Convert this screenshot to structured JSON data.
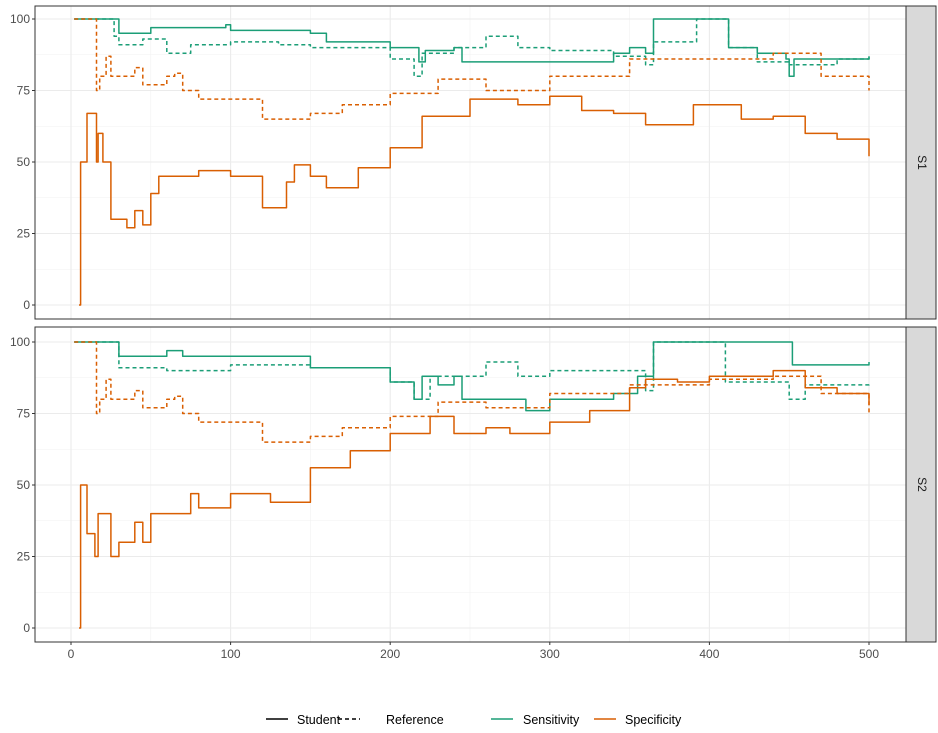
{
  "chart_data": {
    "type": "line",
    "title": "",
    "xlabel": "",
    "ylabel": "",
    "xlim": [
      0,
      525
    ],
    "ylim": [
      0,
      100
    ],
    "x_ticks": [
      "0",
      "100",
      "200",
      "300",
      "400",
      "500"
    ],
    "y_ticks": [
      "0",
      "25",
      "50",
      "75",
      "100"
    ],
    "grid": true,
    "legend_position": "bottom",
    "legend": {
      "linetype": [
        {
          "name": "Student",
          "dash": false
        },
        {
          "name": "Reference",
          "dash": true
        }
      ],
      "color": [
        {
          "name": "Sensitivity",
          "color": "#1b9e77"
        },
        {
          "name": "Specificity",
          "color": "#d95f02"
        }
      ]
    },
    "panels": [
      {
        "label": "S1",
        "series": [
          {
            "name": "Student Sensitivity",
            "metric": "Sensitivity",
            "type": "Student",
            "points": [
              [
                2,
                100
              ],
              [
                28,
                100
              ],
              [
                30,
                95
              ],
              [
                50,
                97
              ],
              [
                97,
                98
              ],
              [
                100,
                96
              ],
              [
                150,
                95
              ],
              [
                160,
                92
              ],
              [
                200,
                90
              ],
              [
                218,
                85
              ],
              [
                222,
                89
              ],
              [
                240,
                90
              ],
              [
                245,
                85
              ],
              [
                300,
                85
              ],
              [
                340,
                88
              ],
              [
                350,
                90
              ],
              [
                360,
                88
              ],
              [
                365,
                100
              ],
              [
                410,
                100
              ],
              [
                412,
                90
              ],
              [
                430,
                88
              ],
              [
                448,
                86
              ],
              [
                450,
                80
              ],
              [
                453,
                86
              ],
              [
                490,
                86
              ],
              [
                500,
                87
              ]
            ]
          },
          {
            "name": "Reference Sensitivity",
            "metric": "Sensitivity",
            "type": "Reference",
            "points": [
              [
                2,
                100
              ],
              [
                25,
                100
              ],
              [
                27,
                94
              ],
              [
                30,
                91
              ],
              [
                45,
                93
              ],
              [
                60,
                88
              ],
              [
                75,
                91
              ],
              [
                100,
                92
              ],
              [
                130,
                91
              ],
              [
                150,
                90
              ],
              [
                200,
                86
              ],
              [
                215,
                80
              ],
              [
                220,
                88
              ],
              [
                240,
                90
              ],
              [
                260,
                94
              ],
              [
                280,
                90
              ],
              [
                300,
                89
              ],
              [
                340,
                87
              ],
              [
                360,
                84
              ],
              [
                365,
                92
              ],
              [
                390,
                92
              ],
              [
                392,
                100
              ],
              [
                410,
                100
              ],
              [
                412,
                90
              ],
              [
                430,
                85
              ],
              [
                450,
                84
              ],
              [
                480,
                86
              ],
              [
                500,
                87
              ]
            ]
          },
          {
            "name": "Reference Specificity",
            "metric": "Specificity",
            "type": "Reference",
            "points": [
              [
                2,
                100
              ],
              [
                15,
                100
              ],
              [
                16,
                75
              ],
              [
                18,
                80
              ],
              [
                22,
                87
              ],
              [
                25,
                80
              ],
              [
                40,
                83
              ],
              [
                45,
                77
              ],
              [
                60,
                80
              ],
              [
                65,
                81
              ],
              [
                70,
                75
              ],
              [
                80,
                72
              ],
              [
                100,
                72
              ],
              [
                120,
                65
              ],
              [
                150,
                67
              ],
              [
                170,
                70
              ],
              [
                200,
                74
              ],
              [
                230,
                79
              ],
              [
                260,
                75
              ],
              [
                300,
                80
              ],
              [
                350,
                86
              ],
              [
                400,
                86
              ],
              [
                440,
                88
              ],
              [
                470,
                80
              ],
              [
                500,
                75
              ]
            ]
          },
          {
            "name": "Student Specificity",
            "metric": "Specificity",
            "type": "Student",
            "points": [
              [
                5,
                0
              ],
              [
                6,
                50
              ],
              [
                10,
                67
              ],
              [
                15,
                67
              ],
              [
                16,
                50
              ],
              [
                17,
                60
              ],
              [
                20,
                50
              ],
              [
                25,
                30
              ],
              [
                35,
                27
              ],
              [
                40,
                33
              ],
              [
                45,
                28
              ],
              [
                50,
                39
              ],
              [
                55,
                45
              ],
              [
                70,
                45
              ],
              [
                80,
                47
              ],
              [
                100,
                45
              ],
              [
                120,
                34
              ],
              [
                135,
                43
              ],
              [
                140,
                49
              ],
              [
                150,
                45
              ],
              [
                160,
                41
              ],
              [
                180,
                48
              ],
              [
                200,
                55
              ],
              [
                220,
                66
              ],
              [
                250,
                72
              ],
              [
                280,
                70
              ],
              [
                300,
                73
              ],
              [
                320,
                68
              ],
              [
                340,
                67
              ],
              [
                360,
                63
              ],
              [
                390,
                70
              ],
              [
                420,
                65
              ],
              [
                440,
                66
              ],
              [
                460,
                60
              ],
              [
                480,
                58
              ],
              [
                500,
                52
              ]
            ]
          }
        ]
      },
      {
        "label": "S2",
        "series": [
          {
            "name": "Student Sensitivity",
            "metric": "Sensitivity",
            "type": "Student",
            "points": [
              [
                2,
                100
              ],
              [
                28,
                100
              ],
              [
                30,
                95
              ],
              [
                60,
                97
              ],
              [
                70,
                95
              ],
              [
                100,
                95
              ],
              [
                150,
                91
              ],
              [
                200,
                86
              ],
              [
                215,
                80
              ],
              [
                220,
                88
              ],
              [
                230,
                85
              ],
              [
                240,
                88
              ],
              [
                245,
                80
              ],
              [
                265,
                80
              ],
              [
                285,
                76
              ],
              [
                300,
                80
              ],
              [
                340,
                82
              ],
              [
                355,
                88
              ],
              [
                365,
                100
              ],
              [
                450,
                100
              ],
              [
                452,
                92
              ],
              [
                500,
                93
              ]
            ]
          },
          {
            "name": "Reference Sensitivity",
            "metric": "Sensitivity",
            "type": "Reference",
            "points": [
              [
                2,
                100
              ],
              [
                25,
                100
              ],
              [
                30,
                91
              ],
              [
                60,
                90
              ],
              [
                100,
                92
              ],
              [
                150,
                91
              ],
              [
                200,
                86
              ],
              [
                215,
                80
              ],
              [
                225,
                88
              ],
              [
                260,
                93
              ],
              [
                280,
                88
              ],
              [
                300,
                90
              ],
              [
                350,
                90
              ],
              [
                360,
                83
              ],
              [
                365,
                100
              ],
              [
                390,
                100
              ],
              [
                410,
                86
              ],
              [
                450,
                80
              ],
              [
                460,
                85
              ],
              [
                500,
                86
              ]
            ]
          },
          {
            "name": "Reference Specificity",
            "metric": "Specificity",
            "type": "Reference",
            "points": [
              [
                2,
                100
              ],
              [
                15,
                100
              ],
              [
                16,
                75
              ],
              [
                18,
                80
              ],
              [
                22,
                87
              ],
              [
                25,
                80
              ],
              [
                40,
                83
              ],
              [
                45,
                77
              ],
              [
                60,
                80
              ],
              [
                65,
                81
              ],
              [
                70,
                75
              ],
              [
                80,
                72
              ],
              [
                100,
                72
              ],
              [
                120,
                65
              ],
              [
                150,
                67
              ],
              [
                170,
                70
              ],
              [
                200,
                74
              ],
              [
                230,
                79
              ],
              [
                260,
                77
              ],
              [
                300,
                82
              ],
              [
                350,
                85
              ],
              [
                400,
                87
              ],
              [
                440,
                88
              ],
              [
                470,
                82
              ],
              [
                500,
                75
              ]
            ]
          },
          {
            "name": "Student Specificity",
            "metric": "Specificity",
            "type": "Student",
            "points": [
              [
                5,
                0
              ],
              [
                6,
                50
              ],
              [
                10,
                33
              ],
              [
                15,
                25
              ],
              [
                17,
                40
              ],
              [
                25,
                25
              ],
              [
                30,
                30
              ],
              [
                40,
                37
              ],
              [
                45,
                30
              ],
              [
                50,
                40
              ],
              [
                65,
                40
              ],
              [
                75,
                47
              ],
              [
                80,
                42
              ],
              [
                100,
                47
              ],
              [
                115,
                47
              ],
              [
                125,
                44
              ],
              [
                150,
                56
              ],
              [
                175,
                62
              ],
              [
                200,
                68
              ],
              [
                225,
                74
              ],
              [
                240,
                68
              ],
              [
                260,
                70
              ],
              [
                275,
                68
              ],
              [
                300,
                72
              ],
              [
                325,
                76
              ],
              [
                350,
                84
              ],
              [
                360,
                87
              ],
              [
                380,
                86
              ],
              [
                400,
                88
              ],
              [
                430,
                88
              ],
              [
                440,
                90
              ],
              [
                460,
                84
              ],
              [
                480,
                82
              ],
              [
                500,
                78
              ]
            ]
          }
        ]
      }
    ]
  }
}
